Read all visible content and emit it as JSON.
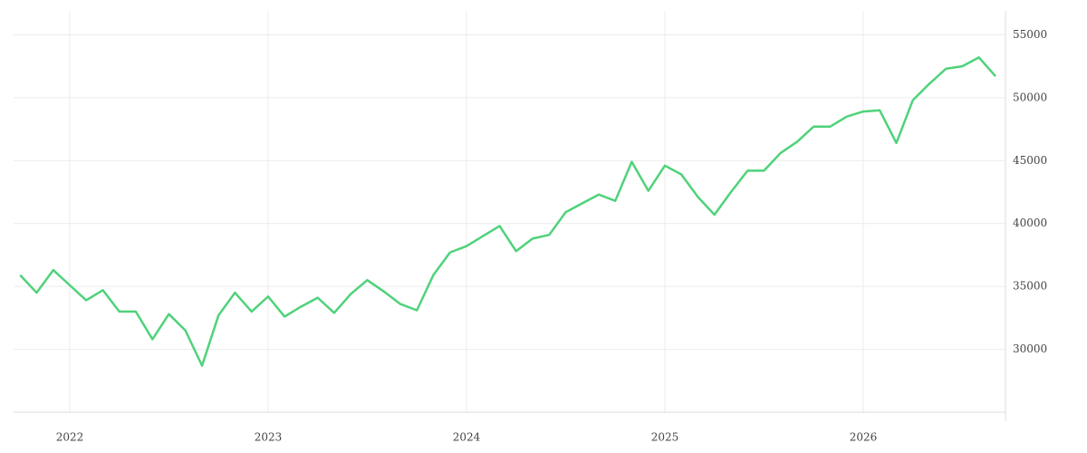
{
  "chart_data": {
    "type": "line",
    "x": [
      2021.75,
      2021.833,
      2021.917,
      2022,
      2022.083,
      2022.167,
      2022.25,
      2022.333,
      2022.417,
      2022.5,
      2022.583,
      2022.667,
      2022.75,
      2022.833,
      2022.917,
      2023,
      2023.083,
      2023.167,
      2023.25,
      2023.333,
      2023.417,
      2023.5,
      2023.583,
      2023.667,
      2023.75,
      2023.833,
      2023.917,
      2024,
      2024.083,
      2024.167,
      2024.25,
      2024.333,
      2024.417,
      2024.5,
      2024.583,
      2024.667,
      2024.75,
      2024.833,
      2024.917,
      2025,
      2025.083,
      2025.167,
      2025.25,
      2025.333,
      2025.417,
      2025.5,
      2025.583,
      2025.667,
      2025.75,
      2025.833,
      2025.917,
      2026,
      2026.083,
      2026.167,
      2026.25,
      2026.333,
      2026.417,
      2026.5,
      2026.583,
      2026.667
    ],
    "series": [
      {
        "color": "#4fd27a",
        "values": [
          35900,
          34500,
          36300,
          35100,
          33900,
          34700,
          33000,
          33000,
          30800,
          32800,
          31500,
          28700,
          32700,
          34500,
          33000,
          34200,
          32600,
          33400,
          34100,
          32900,
          34400,
          35500,
          34600,
          33600,
          33100,
          35900,
          37700,
          38200,
          39000,
          39800,
          37800,
          38800,
          39100,
          40900,
          41600,
          42300,
          41800,
          44900,
          42600,
          44600,
          43900,
          42100,
          40700,
          42500,
          44200,
          44200,
          45600,
          46500,
          47700,
          47700,
          48500,
          48900,
          49000,
          46400,
          49800,
          51100,
          52300,
          52500,
          53200,
          51700
        ]
      }
    ],
    "xlim": [
      2021.717,
      2026.717
    ],
    "xticks": [
      2022,
      2023,
      2024,
      2025,
      2026
    ],
    "ylim": [
      25000,
      56900
    ],
    "yticks": [
      30000,
      35000,
      40000,
      45000,
      50000,
      55000
    ],
    "grid": true
  }
}
